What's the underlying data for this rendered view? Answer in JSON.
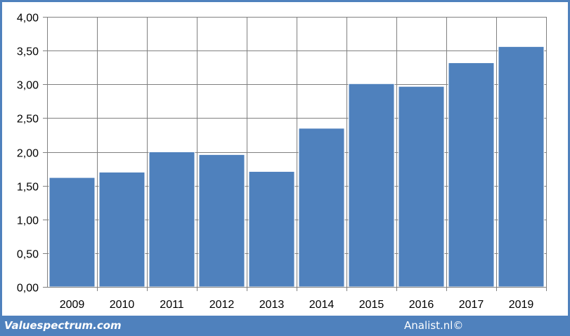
{
  "chart_data": {
    "type": "bar",
    "title": "",
    "xlabel": "",
    "ylabel": "",
    "categories": [
      "2009",
      "2010",
      "2011",
      "2012",
      "2013",
      "2014",
      "2015",
      "2016",
      "2017",
      "2019"
    ],
    "values": [
      1.62,
      1.7,
      2.0,
      1.96,
      1.71,
      2.35,
      3.01,
      2.97,
      3.32,
      3.56
    ],
    "ylim": [
      0,
      4
    ],
    "yticks": [
      "0,00",
      "0,50",
      "1,00",
      "1,50",
      "2,00",
      "2,50",
      "3,00",
      "3,50",
      "4,00"
    ],
    "grid": true,
    "bar_color": "#4f81bd",
    "grid_color": "#808080"
  },
  "footer": {
    "left_text": "Valuespectrum.com",
    "right_text": "Analist.nl©"
  },
  "colors": {
    "frame": "#4f81bd",
    "background": "#ffffff"
  }
}
